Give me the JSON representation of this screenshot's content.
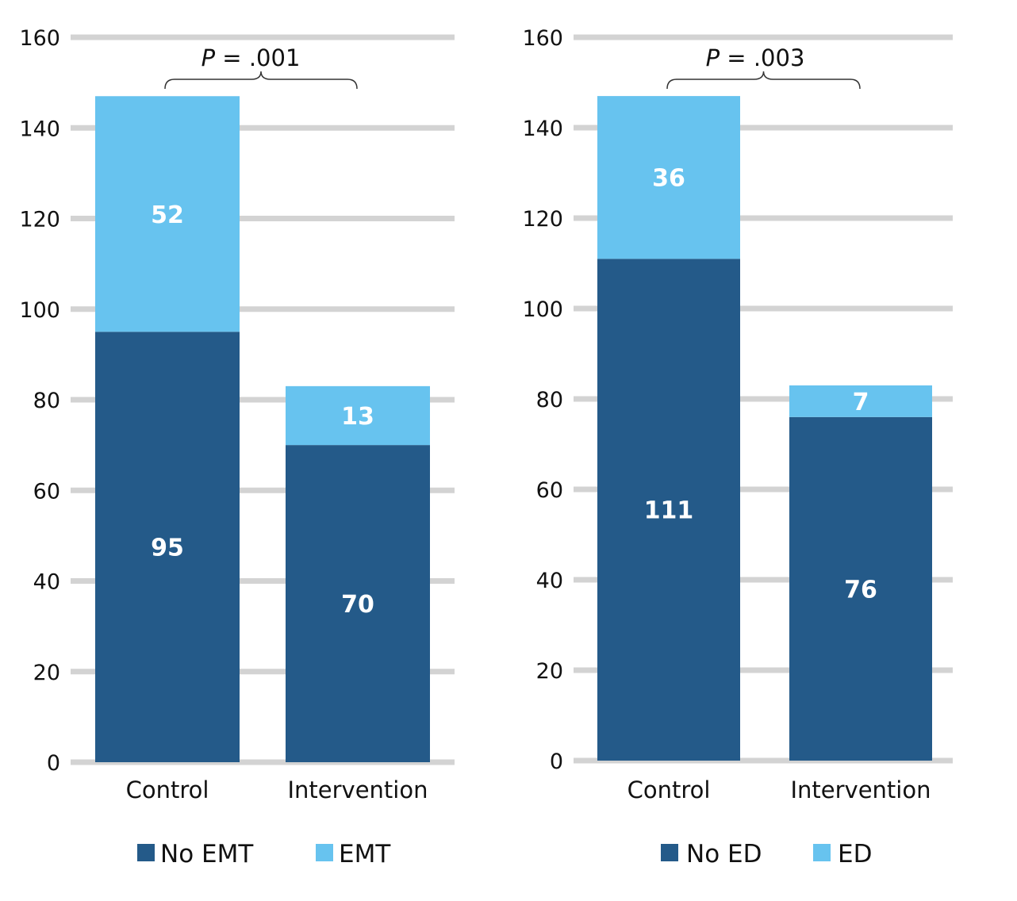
{
  "chart_data": [
    {
      "type": "bar",
      "stacked": true,
      "categories": [
        "Control",
        "Intervention"
      ],
      "series": [
        {
          "name": "No EMT",
          "values": [
            95,
            70
          ],
          "color": "#245a89"
        },
        {
          "name": "EMT",
          "values": [
            52,
            13
          ],
          "color": "#67c3ef"
        }
      ],
      "ylim": [
        0,
        160
      ],
      "yticks": [
        0,
        20,
        40,
        60,
        80,
        100,
        120,
        140,
        160
      ],
      "grid": true,
      "legend": "bottom",
      "annotation": {
        "italic": "P",
        "rest": " = .001"
      }
    },
    {
      "type": "bar",
      "stacked": true,
      "categories": [
        "Control",
        "Intervention"
      ],
      "series": [
        {
          "name": "No ED",
          "values": [
            111,
            76
          ],
          "color": "#245a89"
        },
        {
          "name": "ED",
          "values": [
            36,
            7
          ],
          "color": "#67c3ef"
        }
      ],
      "ylim": [
        0,
        160
      ],
      "yticks": [
        0,
        20,
        40,
        60,
        80,
        100,
        120,
        140,
        160
      ],
      "grid": true,
      "legend": "bottom",
      "annotation": {
        "italic": "P",
        "rest": " = .003"
      }
    }
  ]
}
